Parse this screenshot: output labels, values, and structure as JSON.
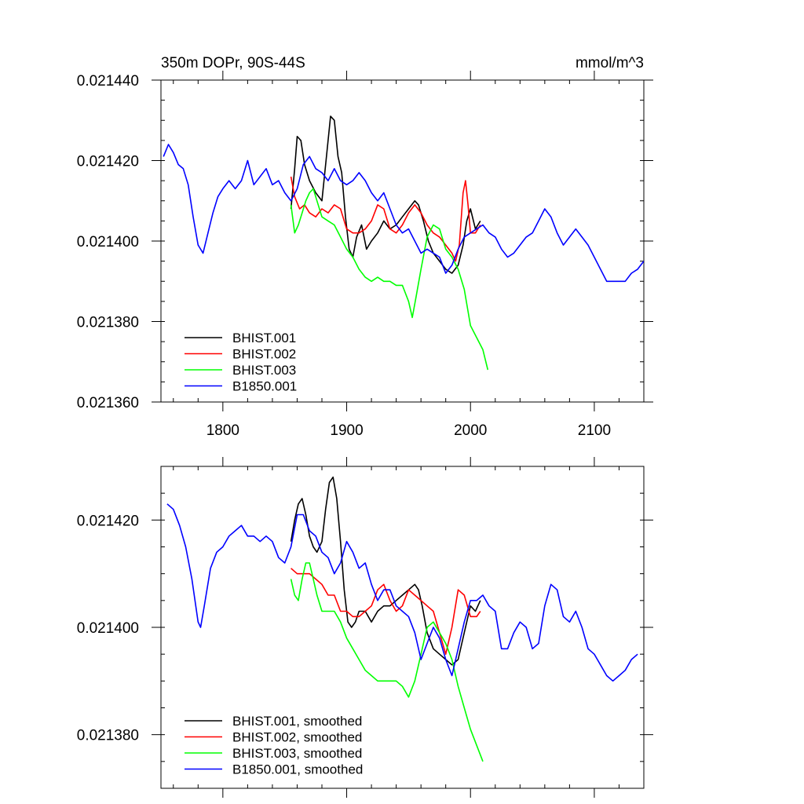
{
  "chart_data": [
    {
      "type": "line",
      "title": "350m DOPr, 90S-44S",
      "units": "mmol/m^3",
      "xlim": [
        1750,
        2140
      ],
      "ylim": [
        0.02136,
        0.02144
      ],
      "x_ticks": [
        1800,
        1900,
        2000,
        2100
      ],
      "x_tick_labels": [
        "1800",
        "1900",
        "2000",
        "2100"
      ],
      "y_ticks": [
        0.02136,
        0.02138,
        0.0214,
        0.02142,
        0.02144
      ],
      "y_tick_labels": [
        "0.021360",
        "0.021380",
        "0.021400",
        "0.021420",
        "0.021440"
      ],
      "legend_position": "bottom-left",
      "series": [
        {
          "name": "BHIST.001",
          "color": "#000000",
          "x": [
            1855,
            1858,
            1860,
            1863,
            1866,
            1870,
            1875,
            1880,
            1884,
            1887,
            1890,
            1893,
            1896,
            1899,
            1902,
            1905,
            1908,
            1912,
            1916,
            1920,
            1925,
            1930,
            1935,
            1940,
            1945,
            1950,
            1955,
            1958,
            1962,
            1966,
            1970,
            1975,
            1980,
            1985,
            1990,
            1994,
            1997,
            2000,
            2004,
            2008
          ],
          "y": [
            0.021408,
            0.021418,
            0.021426,
            0.021425,
            0.021419,
            0.021415,
            0.021412,
            0.02141,
            0.021422,
            0.021431,
            0.02143,
            0.021421,
            0.021417,
            0.021406,
            0.021398,
            0.021396,
            0.021401,
            0.021404,
            0.021398,
            0.0214,
            0.021402,
            0.021405,
            0.021403,
            0.021404,
            0.021406,
            0.021408,
            0.02141,
            0.021409,
            0.021405,
            0.0214,
            0.021397,
            0.021395,
            0.021393,
            0.021392,
            0.021394,
            0.021399,
            0.021405,
            0.021408,
            0.021403,
            0.021405
          ]
        },
        {
          "name": "BHIST.002",
          "color": "#ff0000",
          "x": [
            1855,
            1858,
            1862,
            1866,
            1870,
            1875,
            1880,
            1885,
            1890,
            1895,
            1900,
            1905,
            1910,
            1915,
            1920,
            1925,
            1930,
            1935,
            1940,
            1945,
            1950,
            1955,
            1960,
            1965,
            1970,
            1975,
            1980,
            1985,
            1988,
            1991,
            1994,
            1996,
            1998,
            2000,
            2004,
            2008
          ],
          "y": [
            0.021416,
            0.021411,
            0.021408,
            0.021409,
            0.021407,
            0.021406,
            0.021408,
            0.021407,
            0.021409,
            0.021408,
            0.021403,
            0.021402,
            0.021402,
            0.021403,
            0.021405,
            0.021409,
            0.021408,
            0.021403,
            0.021402,
            0.021404,
            0.021407,
            0.021409,
            0.021407,
            0.021404,
            0.021402,
            0.021401,
            0.021399,
            0.021397,
            0.021395,
            0.021399,
            0.021412,
            0.021415,
            0.021409,
            0.021402,
            0.021402,
            0.021404
          ]
        },
        {
          "name": "BHIST.003",
          "color": "#00ff00",
          "x": [
            1855,
            1858,
            1861,
            1864,
            1867,
            1870,
            1873,
            1876,
            1880,
            1885,
            1890,
            1895,
            1900,
            1905,
            1910,
            1915,
            1920,
            1925,
            1930,
            1935,
            1940,
            1945,
            1950,
            1953,
            1956,
            1960,
            1965,
            1970,
            1975,
            1980,
            1985,
            1990,
            1995,
            2000,
            2005,
            2010,
            2014
          ],
          "y": [
            0.021409,
            0.021402,
            0.021404,
            0.021407,
            0.02141,
            0.021412,
            0.021413,
            0.02141,
            0.021406,
            0.021405,
            0.021404,
            0.021401,
            0.021398,
            0.021396,
            0.021393,
            0.021391,
            0.02139,
            0.021391,
            0.02139,
            0.02139,
            0.021389,
            0.021389,
            0.021385,
            0.021381,
            0.021386,
            0.021393,
            0.021401,
            0.021404,
            0.021403,
            0.021398,
            0.021396,
            0.021393,
            0.021388,
            0.021379,
            0.021376,
            0.021373,
            0.021368
          ]
        },
        {
          "name": "B1850.001",
          "color": "#0000ff",
          "x": [
            1752,
            1756,
            1760,
            1764,
            1768,
            1772,
            1776,
            1780,
            1784,
            1788,
            1792,
            1796,
            1800,
            1805,
            1810,
            1815,
            1820,
            1825,
            1830,
            1835,
            1840,
            1845,
            1850,
            1855,
            1860,
            1865,
            1870,
            1875,
            1880,
            1885,
            1890,
            1895,
            1900,
            1905,
            1910,
            1915,
            1920,
            1925,
            1930,
            1935,
            1940,
            1945,
            1950,
            1955,
            1960,
            1965,
            1970,
            1975,
            1980,
            1985,
            1990,
            1995,
            2000,
            2005,
            2010,
            2015,
            2020,
            2025,
            2030,
            2035,
            2040,
            2045,
            2050,
            2055,
            2060,
            2065,
            2070,
            2075,
            2080,
            2085,
            2090,
            2095,
            2100,
            2105,
            2110,
            2115,
            2120,
            2125,
            2130,
            2135,
            2140
          ],
          "y": [
            0.021421,
            0.021424,
            0.021422,
            0.021419,
            0.021418,
            0.021414,
            0.021406,
            0.021399,
            0.021397,
            0.021402,
            0.021407,
            0.021411,
            0.021413,
            0.021415,
            0.021413,
            0.021415,
            0.02142,
            0.021414,
            0.021416,
            0.021418,
            0.021414,
            0.021415,
            0.021412,
            0.02141,
            0.021413,
            0.021419,
            0.021421,
            0.021418,
            0.021417,
            0.021415,
            0.021418,
            0.021415,
            0.021414,
            0.021415,
            0.021417,
            0.021415,
            0.021412,
            0.02141,
            0.021412,
            0.021408,
            0.021404,
            0.021402,
            0.021403,
            0.0214,
            0.021397,
            0.021398,
            0.021397,
            0.021396,
            0.021392,
            0.021394,
            0.021398,
            0.021401,
            0.021402,
            0.021403,
            0.021404,
            0.021402,
            0.021401,
            0.021398,
            0.021396,
            0.021397,
            0.021399,
            0.021401,
            0.021402,
            0.021405,
            0.021408,
            0.021406,
            0.021402,
            0.021399,
            0.021401,
            0.021403,
            0.021401,
            0.021399,
            0.021396,
            0.021393,
            0.02139,
            0.02139,
            0.02139,
            0.02139,
            0.021392,
            0.021393,
            0.021395
          ]
        }
      ]
    },
    {
      "type": "line",
      "title": "",
      "xlim": [
        1750,
        2140
      ],
      "ylim": [
        0.02137,
        0.02143
      ],
      "x_ticks": [
        1800,
        1900,
        2000,
        2100
      ],
      "y_ticks": [
        0.02138,
        0.0214,
        0.02142
      ],
      "y_tick_labels": [
        "0.021380",
        "0.021400",
        "0.021420"
      ],
      "legend_position": "bottom-left",
      "series": [
        {
          "name": "BHIST.001, smoothed",
          "color": "#000000",
          "x": [
            1855,
            1858,
            1861,
            1864,
            1867,
            1870,
            1873,
            1876,
            1880,
            1883,
            1886,
            1889,
            1892,
            1895,
            1898,
            1901,
            1904,
            1907,
            1910,
            1915,
            1920,
            1925,
            1930,
            1935,
            1940,
            1945,
            1950,
            1955,
            1958,
            1961,
            1965,
            1970,
            1975,
            1980,
            1985,
            1990,
            1995,
            2000,
            2004,
            2008
          ],
          "y": [
            0.021416,
            0.02142,
            0.021423,
            0.021424,
            0.021421,
            0.021417,
            0.021415,
            0.021414,
            0.021416,
            0.021422,
            0.021427,
            0.021428,
            0.021424,
            0.021416,
            0.021407,
            0.021401,
            0.0214,
            0.021401,
            0.021403,
            0.021403,
            0.021401,
            0.021403,
            0.021404,
            0.021404,
            0.021405,
            0.021406,
            0.021407,
            0.021408,
            0.021407,
            0.021404,
            0.021399,
            0.021396,
            0.021395,
            0.021394,
            0.021393,
            0.021394,
            0.021399,
            0.021404,
            0.021403,
            0.021405
          ]
        },
        {
          "name": "BHIST.002, smoothed",
          "color": "#ff0000",
          "x": [
            1855,
            1860,
            1865,
            1870,
            1875,
            1880,
            1885,
            1890,
            1895,
            1900,
            1905,
            1910,
            1915,
            1920,
            1925,
            1930,
            1935,
            1940,
            1945,
            1950,
            1955,
            1960,
            1965,
            1970,
            1975,
            1980,
            1985,
            1990,
            1995,
            2000,
            2005,
            2008
          ],
          "y": [
            0.021411,
            0.02141,
            0.02141,
            0.02141,
            0.021409,
            0.021408,
            0.021406,
            0.021406,
            0.021403,
            0.021403,
            0.021402,
            0.021402,
            0.021403,
            0.021404,
            0.021407,
            0.021408,
            0.021405,
            0.021403,
            0.021404,
            0.021407,
            0.021406,
            0.021405,
            0.021404,
            0.021403,
            0.021399,
            0.021395,
            0.0214,
            0.021407,
            0.021406,
            0.021402,
            0.021402,
            0.021403
          ]
        },
        {
          "name": "BHIST.003, smoothed",
          "color": "#00ff00",
          "x": [
            1855,
            1858,
            1861,
            1864,
            1867,
            1870,
            1873,
            1876,
            1880,
            1885,
            1890,
            1895,
            1900,
            1905,
            1910,
            1915,
            1920,
            1925,
            1930,
            1935,
            1940,
            1945,
            1950,
            1955,
            1960,
            1965,
            1970,
            1975,
            1980,
            1985,
            1990,
            1995,
            2000,
            2005,
            2010
          ],
          "y": [
            0.021409,
            0.021406,
            0.021405,
            0.021409,
            0.021412,
            0.021412,
            0.021409,
            0.021406,
            0.021403,
            0.021403,
            0.021403,
            0.021401,
            0.021398,
            0.021396,
            0.021394,
            0.021392,
            0.021391,
            0.02139,
            0.02139,
            0.02139,
            0.02139,
            0.021389,
            0.021387,
            0.02139,
            0.021395,
            0.0214,
            0.021401,
            0.021399,
            0.021397,
            0.021394,
            0.021389,
            0.021385,
            0.021381,
            0.021378,
            0.021375
          ]
        },
        {
          "name": "B1850.001, smoothed",
          "color": "#0000ff",
          "x": [
            1755,
            1760,
            1765,
            1770,
            1775,
            1780,
            1782,
            1785,
            1790,
            1795,
            1800,
            1805,
            1810,
            1815,
            1820,
            1825,
            1830,
            1835,
            1840,
            1845,
            1850,
            1855,
            1860,
            1865,
            1870,
            1875,
            1880,
            1885,
            1890,
            1895,
            1900,
            1905,
            1910,
            1915,
            1920,
            1925,
            1930,
            1935,
            1940,
            1945,
            1950,
            1955,
            1960,
            1965,
            1970,
            1975,
            1980,
            1985,
            1990,
            1995,
            2000,
            2005,
            2010,
            2015,
            2020,
            2025,
            2030,
            2035,
            2040,
            2045,
            2050,
            2055,
            2060,
            2065,
            2070,
            2075,
            2080,
            2085,
            2090,
            2095,
            2100,
            2105,
            2110,
            2115,
            2120,
            2125,
            2130,
            2135
          ],
          "y": [
            0.021423,
            0.021422,
            0.021419,
            0.021415,
            0.021409,
            0.021401,
            0.0214,
            0.021404,
            0.021411,
            0.021414,
            0.021415,
            0.021417,
            0.021418,
            0.021419,
            0.021417,
            0.021417,
            0.021416,
            0.021417,
            0.021416,
            0.021413,
            0.021412,
            0.021415,
            0.021421,
            0.021421,
            0.021418,
            0.021417,
            0.021414,
            0.021413,
            0.02141,
            0.021412,
            0.021416,
            0.021414,
            0.021411,
            0.021412,
            0.021408,
            0.021405,
            0.021407,
            0.021407,
            0.021404,
            0.021403,
            0.021402,
            0.021399,
            0.021394,
            0.021397,
            0.0214,
            0.021398,
            0.021394,
            0.021391,
            0.021396,
            0.021401,
            0.021405,
            0.021405,
            0.021406,
            0.021404,
            0.021403,
            0.021396,
            0.021396,
            0.021399,
            0.021401,
            0.0214,
            0.021396,
            0.021397,
            0.021404,
            0.021408,
            0.021407,
            0.021402,
            0.021401,
            0.021403,
            0.0214,
            0.021396,
            0.021395,
            0.021393,
            0.021391,
            0.02139,
            0.021391,
            0.021392,
            0.021394,
            0.021395
          ]
        }
      ]
    }
  ]
}
